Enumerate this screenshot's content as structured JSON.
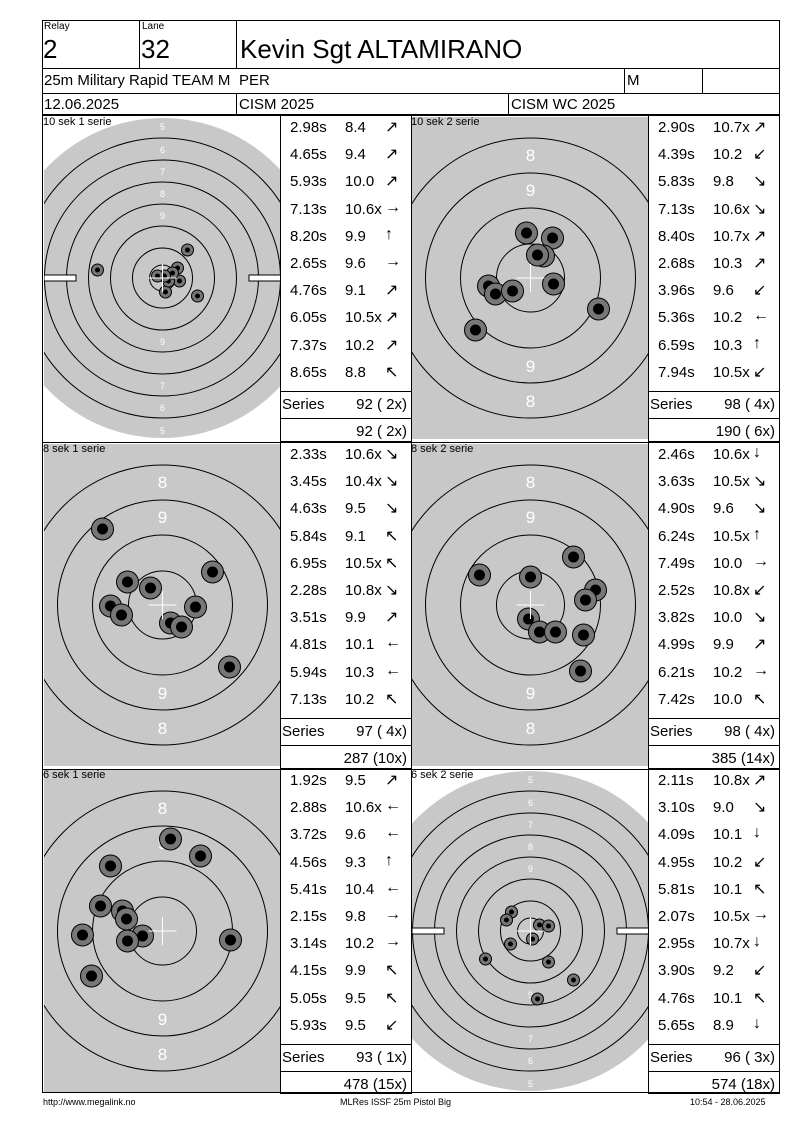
{
  "header": {
    "relay_label": "Relay",
    "relay": "2",
    "lane_label": "Lane",
    "lane": "32",
    "shooter": "Kevin Sgt ALTAMIRANO",
    "event": "25m Military Rapid TEAM M",
    "team": "PER",
    "gender": "M",
    "date": "12.06.2025",
    "competition": "CISM 2025",
    "match": "CISM WC 2025"
  },
  "series": [
    {
      "label": "10 sek 1 serie",
      "shots": [
        {
          "time": "2.98s",
          "score": "8.4",
          "dir": "up-right"
        },
        {
          "time": "4.65s",
          "score": "9.4",
          "dir": "up-right"
        },
        {
          "time": "5.93s",
          "score": "10.0",
          "dir": "up-right"
        },
        {
          "time": "7.13s",
          "score": "10.6x",
          "dir": "right"
        },
        {
          "time": "8.20s",
          "score": "9.9",
          "dir": "up"
        },
        {
          "time": "2.65s",
          "score": "9.6",
          "dir": "right"
        },
        {
          "time": "4.76s",
          "score": "9.1",
          "dir": "up-right"
        },
        {
          "time": "6.05s",
          "score": "10.5x",
          "dir": "up-right"
        },
        {
          "time": "7.37s",
          "score": "10.2",
          "dir": "up-right"
        },
        {
          "time": "8.65s",
          "score": "8.8",
          "dir": "up-left"
        }
      ],
      "series_label": "Series",
      "series_total": "92 ( 2x)",
      "running_total": "92 ( 2x)"
    },
    {
      "label": "10 sek 2 serie",
      "shots": [
        {
          "time": "2.90s",
          "score": "10.7x",
          "dir": "up-right"
        },
        {
          "time": "4.39s",
          "score": "10.2",
          "dir": "down-left"
        },
        {
          "time": "5.83s",
          "score": "9.8",
          "dir": "down-right"
        },
        {
          "time": "7.13s",
          "score": "10.6x",
          "dir": "down-right"
        },
        {
          "time": "8.40s",
          "score": "10.7x",
          "dir": "up-right"
        },
        {
          "time": "2.68s",
          "score": "10.3",
          "dir": "up-right"
        },
        {
          "time": "3.96s",
          "score": "9.6",
          "dir": "down-left"
        },
        {
          "time": "5.36s",
          "score": "10.2",
          "dir": "left"
        },
        {
          "time": "6.59s",
          "score": "10.3",
          "dir": "up"
        },
        {
          "time": "7.94s",
          "score": "10.5x",
          "dir": "down-left"
        }
      ],
      "series_label": "Series",
      "series_total": "98 ( 4x)",
      "running_total": "190 ( 6x)"
    },
    {
      "label": "8 sek 1 serie",
      "shots": [
        {
          "time": "2.33s",
          "score": "10.6x",
          "dir": "down-right"
        },
        {
          "time": "3.45s",
          "score": "10.4x",
          "dir": "down-right"
        },
        {
          "time": "4.63s",
          "score": "9.5",
          "dir": "down-right"
        },
        {
          "time": "5.84s",
          "score": "9.1",
          "dir": "up-left"
        },
        {
          "time": "6.95s",
          "score": "10.5x",
          "dir": "up-left"
        },
        {
          "time": "2.28s",
          "score": "10.8x",
          "dir": "down-right"
        },
        {
          "time": "3.51s",
          "score": "9.9",
          "dir": "up-right"
        },
        {
          "time": "4.81s",
          "score": "10.1",
          "dir": "left"
        },
        {
          "time": "5.94s",
          "score": "10.3",
          "dir": "left"
        },
        {
          "time": "7.13s",
          "score": "10.2",
          "dir": "up-left"
        }
      ],
      "series_label": "Series",
      "series_total": "97 ( 4x)",
      "running_total": "287 (10x)"
    },
    {
      "label": "8 sek 2 serie",
      "shots": [
        {
          "time": "2.46s",
          "score": "10.6x",
          "dir": "down"
        },
        {
          "time": "3.63s",
          "score": "10.5x",
          "dir": "down-right"
        },
        {
          "time": "4.90s",
          "score": "9.6",
          "dir": "down-right"
        },
        {
          "time": "6.24s",
          "score": "10.5x",
          "dir": "up"
        },
        {
          "time": "7.49s",
          "score": "10.0",
          "dir": "right"
        },
        {
          "time": "2.52s",
          "score": "10.8x",
          "dir": "down-left"
        },
        {
          "time": "3.82s",
          "score": "10.0",
          "dir": "down-right"
        },
        {
          "time": "4.99s",
          "score": "9.9",
          "dir": "up-right"
        },
        {
          "time": "6.21s",
          "score": "10.2",
          "dir": "right"
        },
        {
          "time": "7.42s",
          "score": "10.0",
          "dir": "up-left"
        }
      ],
      "series_label": "Series",
      "series_total": "98 ( 4x)",
      "running_total": "385 (14x)"
    },
    {
      "label": "6 sek 1 serie",
      "shots": [
        {
          "time": "1.92s",
          "score": "9.5",
          "dir": "up-right"
        },
        {
          "time": "2.88s",
          "score": "10.6x",
          "dir": "left"
        },
        {
          "time": "3.72s",
          "score": "9.6",
          "dir": "left"
        },
        {
          "time": "4.56s",
          "score": "9.3",
          "dir": "up"
        },
        {
          "time": "5.41s",
          "score": "10.4",
          "dir": "left"
        },
        {
          "time": "2.15s",
          "score": "9.8",
          "dir": "right"
        },
        {
          "time": "3.14s",
          "score": "10.2",
          "dir": "right"
        },
        {
          "time": "4.15s",
          "score": "9.9",
          "dir": "up-left"
        },
        {
          "time": "5.05s",
          "score": "9.5",
          "dir": "up-left"
        },
        {
          "time": "5.93s",
          "score": "9.5",
          "dir": "down-left"
        }
      ],
      "series_label": "Series",
      "series_total": "93 ( 1x)",
      "running_total": "478 (15x)"
    },
    {
      "label": "6 sek 2 serie",
      "shots": [
        {
          "time": "2.11s",
          "score": "10.8x",
          "dir": "up-right"
        },
        {
          "time": "3.10s",
          "score": "9.0",
          "dir": "down-right"
        },
        {
          "time": "4.09s",
          "score": "10.1",
          "dir": "down"
        },
        {
          "time": "4.95s",
          "score": "10.2",
          "dir": "down-left"
        },
        {
          "time": "5.81s",
          "score": "10.1",
          "dir": "up-left"
        },
        {
          "time": "2.07s",
          "score": "10.5x",
          "dir": "right"
        },
        {
          "time": "2.95s",
          "score": "10.7x",
          "dir": "down"
        },
        {
          "time": "3.90s",
          "score": "9.2",
          "dir": "down-left"
        },
        {
          "time": "4.76s",
          "score": "10.1",
          "dir": "up-left"
        },
        {
          "time": "5.65s",
          "score": "8.9",
          "dir": "down"
        }
      ],
      "series_label": "Series",
      "series_total": "96 ( 3x)",
      "running_total": "574 (18x)"
    }
  ],
  "footer": {
    "url": "http://www.megalink.no",
    "software": "MLRes ISSF 25m Pistol Big",
    "timestamp": "10:54 - 28.06.2025"
  }
}
